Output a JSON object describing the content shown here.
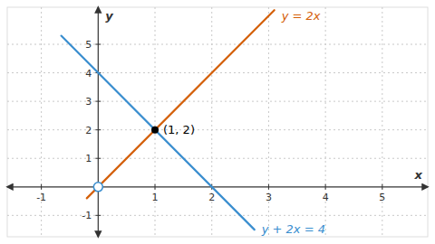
{
  "chart_data": {
    "type": "line",
    "xlabel": "x",
    "ylabel": "y",
    "xlim": [
      -1.6,
      5.8
    ],
    "ylim": [
      -1.75,
      6.3
    ],
    "xticks": [
      -1,
      1,
      2,
      3,
      4,
      5
    ],
    "yticks": [
      -1,
      1,
      2,
      3,
      4,
      5
    ],
    "grid": true,
    "series": [
      {
        "name": "y = 2x",
        "color": "#d4600a",
        "x": [
          -0.2,
          3.1
        ],
        "values": [
          -0.4,
          6.2
        ]
      },
      {
        "name": "y + 2x = 4",
        "color": "#3a8ecf",
        "x": [
          -0.65,
          2.75
        ],
        "values": [
          5.3,
          -1.5
        ]
      }
    ],
    "points": [
      {
        "x": 1,
        "y": 2,
        "label": "(1, 2)",
        "color": "#000000",
        "marker": "circle"
      },
      {
        "x": 0,
        "y": 0,
        "color": "#3a8ecf",
        "marker": "open-circle"
      }
    ]
  }
}
